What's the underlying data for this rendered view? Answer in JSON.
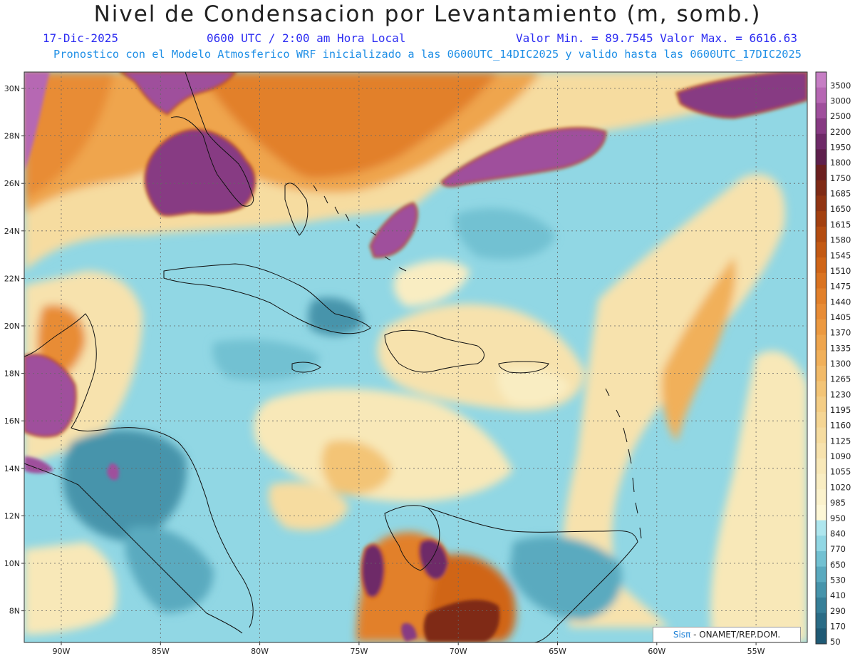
{
  "header": {
    "title": "Nivel de Condensacion por Levantamiento (m, somb.)",
    "date": "17-Dic-2025",
    "time": "0600 UTC / 2:00 am Hora Local",
    "minmax": "Valor Min. = 89.7545  Valor Max. = 6616.63",
    "model_line": "Pronostico con el Modelo Atmosferico WRF inicializado a las 0600UTC_14DIC2025 y valido hasta las  0600UTC_17DIC2025"
  },
  "axes": {
    "lat_labels": [
      "30N",
      "28N",
      "26N",
      "24N",
      "22N",
      "20N",
      "18N",
      "16N",
      "14N",
      "12N",
      "10N",
      "8N"
    ],
    "lon_labels": [
      "90W",
      "85W",
      "80W",
      "75W",
      "70W",
      "65W",
      "60W",
      "55W"
    ]
  },
  "colorbar": {
    "levels": [
      "3500",
      "3000",
      "2500",
      "2200",
      "1950",
      "1800",
      "1750",
      "1685",
      "1650",
      "1615",
      "1580",
      "1545",
      "1510",
      "1475",
      "1440",
      "1405",
      "1370",
      "1335",
      "1300",
      "1265",
      "1230",
      "1195",
      "1160",
      "1125",
      "1090",
      "1055",
      "1020",
      "985",
      "950",
      "840",
      "770",
      "650",
      "530",
      "410",
      "290",
      "170",
      "50"
    ],
    "colors": [
      "#c67ec4",
      "#b667b3",
      "#9f4f9c",
      "#873a83",
      "#6e2a68",
      "#5e1f4c",
      "#6b1f1f",
      "#7f2a15",
      "#913412",
      "#a3400f",
      "#b44c10",
      "#c35913",
      "#d06517",
      "#da7320",
      "#e2802a",
      "#e88c35",
      "#ec9940",
      "#efa54d",
      "#f1b05a",
      "#f2ba68",
      "#f3c476",
      "#f4cd85",
      "#f5d593",
      "#f6dca0",
      "#f7e2ad",
      "#f8e8b8",
      "#f9edc2",
      "#fbf2cc",
      "#fdf7d6",
      "#aee6ee",
      "#91d7e4",
      "#72c1d2",
      "#5aaabf",
      "#4694ab",
      "#367f98",
      "#2a6c86",
      "#1f5a75"
    ]
  },
  "credit": {
    "logo": "Sisπ",
    "text": " - ONAMET/REP.DOM."
  }
}
